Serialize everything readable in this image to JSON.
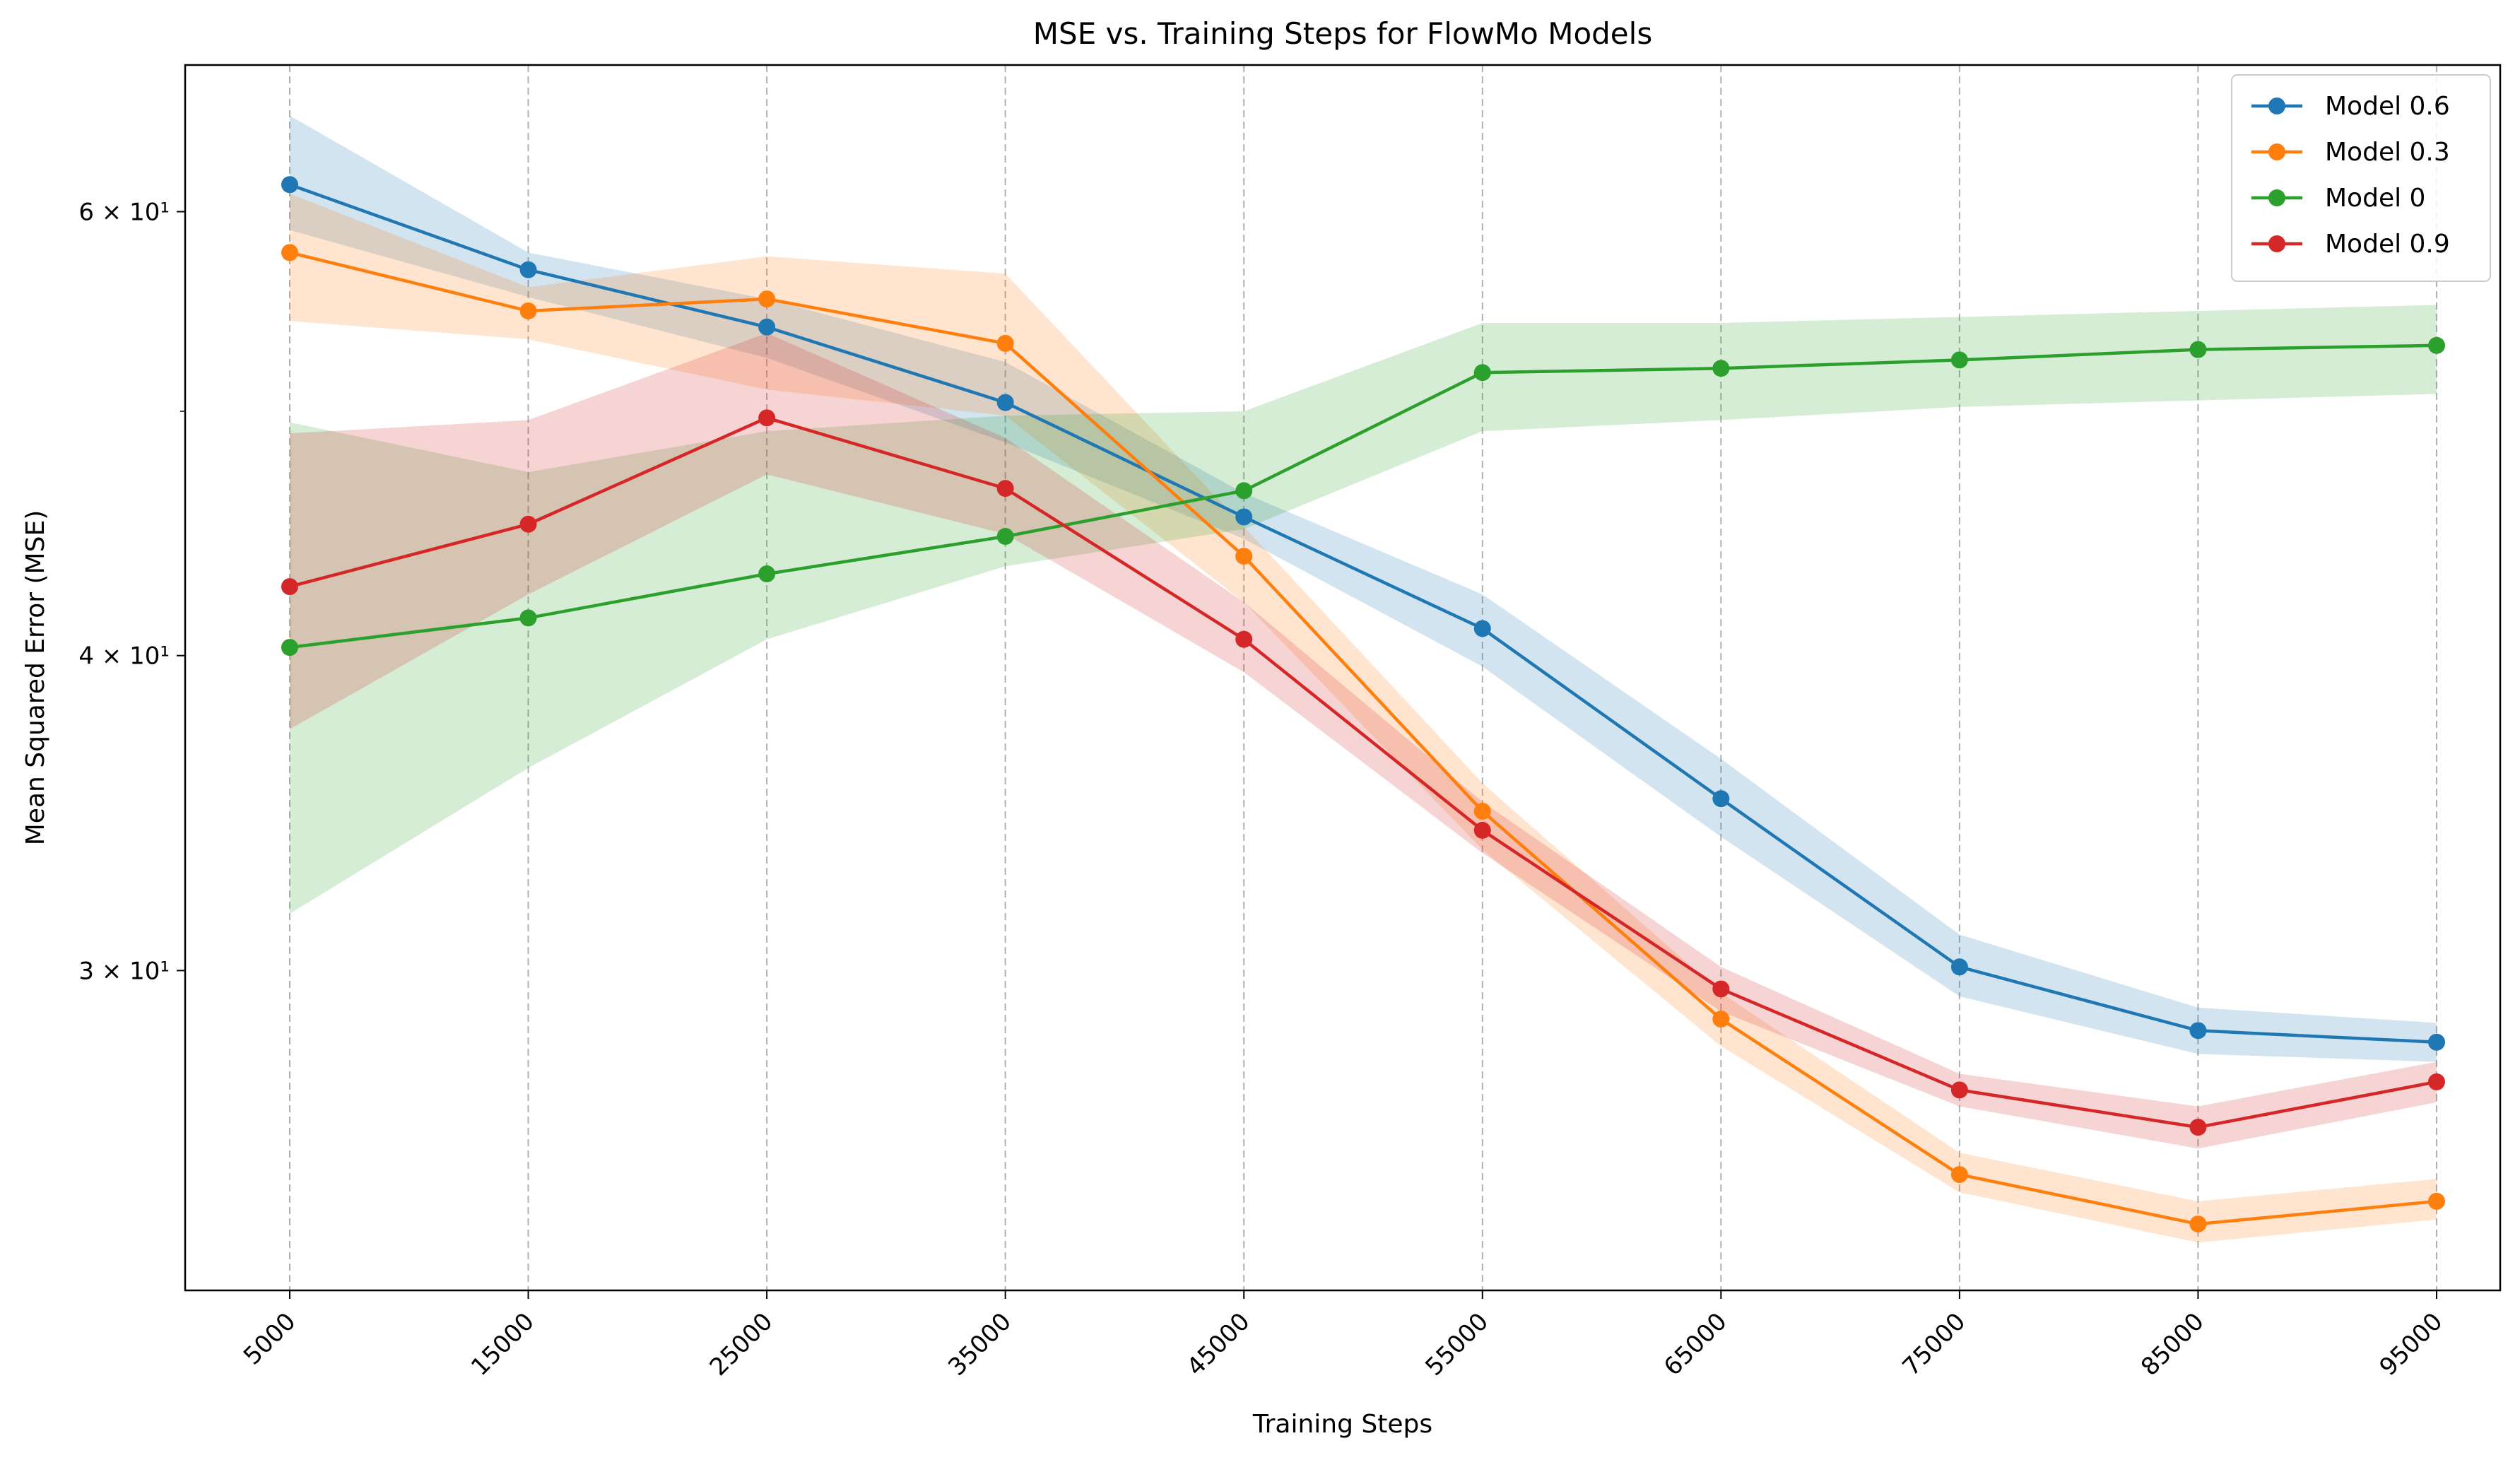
{
  "chart_data": {
    "type": "line",
    "title": "MSE vs. Training Steps for FlowMo Models",
    "xlabel": "Training Steps",
    "ylabel": "Mean Squared Error (MSE)",
    "yscale": "log",
    "ylim": [
      22.4,
      68.6
    ],
    "grid": "vertical dashed",
    "legend_position": "top-right",
    "x": [
      5000,
      15000,
      25000,
      35000,
      45000,
      55000,
      65000,
      75000,
      85000,
      95000
    ],
    "y_major_ticks": [
      {
        "value": 30,
        "label": "3 × 10¹"
      },
      {
        "value": 40,
        "label": "4 × 10¹"
      },
      {
        "value": 60,
        "label": "6 × 10¹"
      }
    ],
    "y_minor_ticks": [
      50
    ],
    "series": [
      {
        "name": "Model 0.6",
        "color": "#1f77b4",
        "values": [
          61.5,
          56.9,
          54.0,
          50.4,
          45.4,
          41.0,
          35.1,
          30.1,
          28.4,
          28.1
        ],
        "lower": [
          59.0,
          55.5,
          52.5,
          48.6,
          44.5,
          39.6,
          33.9,
          29.3,
          27.8,
          27.6
        ],
        "upper": [
          65.5,
          57.8,
          55.4,
          52.3,
          46.4,
          42.3,
          36.4,
          31.0,
          29.0,
          28.6
        ]
      },
      {
        "name": "Model 0.3",
        "color": "#ff7f0e",
        "values": [
          57.8,
          54.8,
          55.4,
          53.2,
          43.8,
          34.7,
          28.7,
          24.9,
          23.8,
          24.3
        ],
        "lower": [
          54.3,
          53.4,
          51.0,
          49.8,
          42.0,
          33.5,
          28.0,
          24.5,
          23.4,
          23.9
        ],
        "upper": [
          61.0,
          56.0,
          57.6,
          56.7,
          45.0,
          35.6,
          29.4,
          25.4,
          24.3,
          24.8
        ],
        "lower_note": "band"
      },
      {
        "name": "Model 0",
        "color": "#2ca02c",
        "values": [
          40.3,
          41.4,
          43.1,
          44.6,
          46.5,
          51.8,
          52.0,
          52.4,
          52.9,
          53.1
        ],
        "lower": [
          31.6,
          36.1,
          40.6,
          43.4,
          44.9,
          49.1,
          49.6,
          50.2,
          50.5,
          50.8
        ],
        "upper": [
          49.5,
          47.3,
          49.1,
          49.8,
          50.0,
          54.2,
          54.2,
          54.5,
          54.8,
          55.1
        ]
      },
      {
        "name": "Model 0.9",
        "color": "#d62728",
        "values": [
          42.6,
          45.1,
          49.7,
          46.6,
          40.6,
          34.1,
          29.5,
          26.9,
          26.0,
          27.1
        ],
        "lower": [
          37.4,
          42.3,
          47.2,
          44.7,
          39.4,
          33.4,
          28.9,
          26.5,
          25.5,
          26.6
        ],
        "upper": [
          49.0,
          49.6,
          53.7,
          48.8,
          42.0,
          35.0,
          30.1,
          27.3,
          26.5,
          27.6
        ]
      }
    ]
  }
}
